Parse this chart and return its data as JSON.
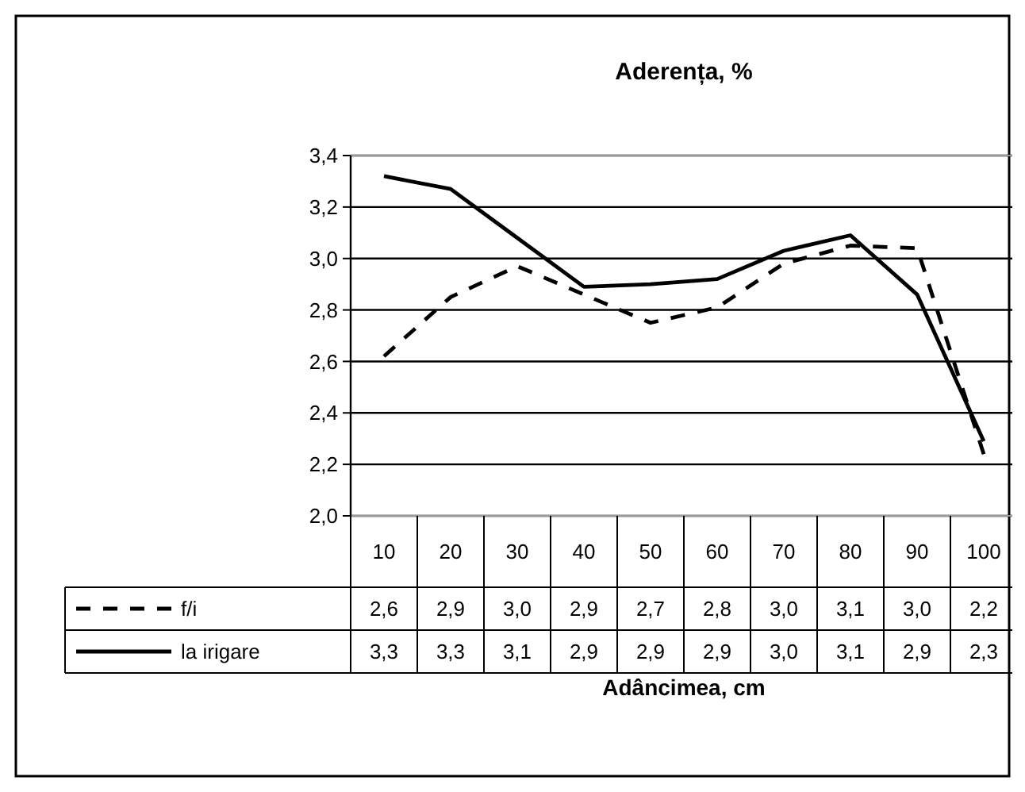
{
  "chart_data": {
    "type": "line",
    "title": "Aderența, %",
    "xlabel": "Adâncimea, cm",
    "categories": [
      "10",
      "20",
      "30",
      "40",
      "50",
      "60",
      "70",
      "80",
      "90",
      "100"
    ],
    "series": [
      {
        "name": "f/i",
        "color": "#000000",
        "line_style": "dashed",
        "values": [
          2.62,
          2.85,
          2.97,
          2.86,
          2.75,
          2.81,
          2.98,
          3.05,
          3.04,
          2.24
        ],
        "value_labels": [
          "2,6",
          "2,9",
          "3,0",
          "2,9",
          "2,7",
          "2,8",
          "3,0",
          "3,1",
          "3,0",
          "2,2"
        ]
      },
      {
        "name": "la irigare",
        "color": "#000000",
        "line_style": "solid",
        "values": [
          3.32,
          3.27,
          3.08,
          2.89,
          2.9,
          2.92,
          3.03,
          3.09,
          2.86,
          2.29
        ],
        "value_labels": [
          "3,3",
          "3,3",
          "3,1",
          "2,9",
          "2,9",
          "2,9",
          "3,0",
          "3,1",
          "2,9",
          "2,3"
        ]
      }
    ],
    "ylim": [
      2.0,
      3.4
    ],
    "yticks": [
      {
        "value": 2.0,
        "label": "2,0"
      },
      {
        "value": 2.2,
        "label": "2,2"
      },
      {
        "value": 2.4,
        "label": "2,4"
      },
      {
        "value": 2.6,
        "label": "2,6"
      },
      {
        "value": 2.8,
        "label": "2,8"
      },
      {
        "value": 3.0,
        "label": "3,0"
      },
      {
        "value": 3.2,
        "label": "3,2"
      },
      {
        "value": 3.4,
        "label": "3,4"
      }
    ],
    "grid": "y",
    "legend": "bottom",
    "marker": "none"
  }
}
